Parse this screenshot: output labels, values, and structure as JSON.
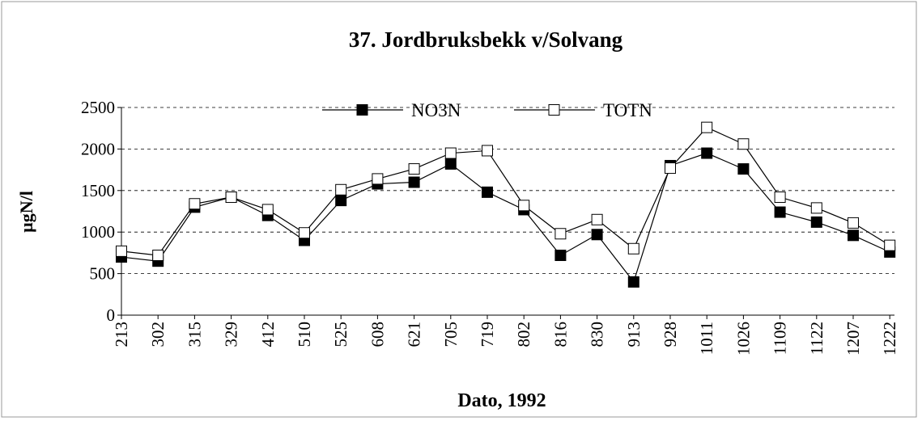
{
  "chart_data": {
    "type": "line",
    "title": "37. Jordbruksbekk v/Solvang",
    "x_label": "Dato, 1992",
    "y_label": "µgN/l",
    "categories": [
      "213",
      "302",
      "315",
      "329",
      "412",
      "510",
      "525",
      "608",
      "621",
      "705",
      "719",
      "802",
      "816",
      "830",
      "913",
      "928",
      "1011",
      "1026",
      "1109",
      "1122",
      "1207",
      "1222"
    ],
    "series": [
      {
        "name": "NO3N",
        "color": "#000000",
        "marker": "filled",
        "values": [
          700,
          650,
          1300,
          1420,
          1200,
          900,
          1380,
          1580,
          1600,
          1820,
          1480,
          1270,
          720,
          970,
          400,
          1800,
          1950,
          1760,
          1240,
          1120,
          960,
          760
        ]
      },
      {
        "name": "TOTN",
        "color": "#000000",
        "marker": "open",
        "values": [
          770,
          720,
          1340,
          1420,
          1270,
          990,
          1510,
          1640,
          1760,
          1950,
          1980,
          1320,
          980,
          1150,
          800,
          1770,
          2260,
          2060,
          1420,
          1290,
          1110,
          840
        ]
      }
    ],
    "ylim": [
      0,
      2500
    ],
    "yticks": [
      0,
      500,
      1000,
      1500,
      2000,
      2500
    ],
    "grid": true,
    "legend": "top"
  }
}
